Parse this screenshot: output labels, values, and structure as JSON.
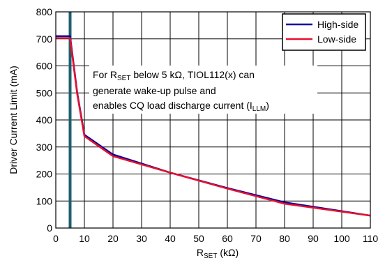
{
  "chart_data": {
    "type": "line",
    "xlabel": "R",
    "xlabel_sub": "SET",
    "xlabel_unit": " (kΩ)",
    "ylabel": "Driver Current Limit (mA)",
    "xlim": [
      0,
      110
    ],
    "ylim": [
      0,
      800
    ],
    "xticks": [
      0,
      10,
      20,
      30,
      40,
      50,
      60,
      70,
      80,
      90,
      100,
      110
    ],
    "yticks": [
      0,
      100,
      200,
      300,
      400,
      500,
      600,
      700,
      800
    ],
    "grid": true,
    "legend_position": "top-right",
    "series": [
      {
        "name": "High-side",
        "color": "#0000a0",
        "x": [
          0,
          5,
          7.5,
          10,
          20,
          40,
          60,
          80,
          110
        ],
        "y": [
          710,
          710,
          500,
          345,
          272,
          205,
          148,
          95,
          46
        ]
      },
      {
        "name": "Low-side",
        "color": "#e8112d",
        "x": [
          0,
          5,
          7.5,
          10,
          20,
          40,
          60,
          80,
          110
        ],
        "y": [
          703,
          703,
          495,
          340,
          266,
          205,
          146,
          90,
          46
        ]
      }
    ],
    "marker_line": {
      "x": 5,
      "color": "#1e5f6e"
    },
    "annotation": {
      "line1_pre": "For R",
      "line1_sub": "SET",
      "line1_post": " below 5 kΩ, TIOL112(x) can",
      "line2": "generate wake-up pulse and",
      "line3_pre": "enables CQ load discharge current (I",
      "line3_sub": "LLM",
      "line3_post": ")"
    }
  }
}
